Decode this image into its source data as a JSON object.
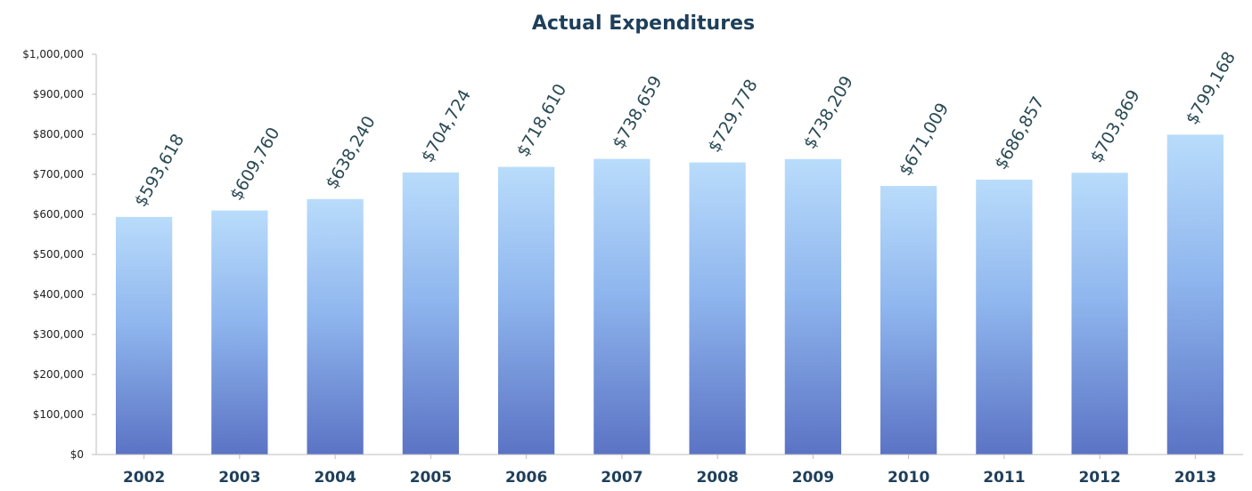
{
  "chart_data": {
    "type": "bar",
    "title": "Actual Expenditures",
    "xlabel": "",
    "ylabel": "",
    "categories": [
      "2002",
      "2003",
      "2004",
      "2005",
      "2006",
      "2007",
      "2008",
      "2009",
      "2010",
      "2011",
      "2012",
      "2013"
    ],
    "values": [
      593618,
      609760,
      638240,
      704724,
      718610,
      738659,
      729778,
      738209,
      671009,
      686857,
      703869,
      799168
    ],
    "data_labels": [
      "$593,618",
      "$609,760",
      "$638,240",
      "$704,724",
      "$718,610",
      "$738,659",
      "$729,778",
      "$738,209",
      "$671,009",
      "$686,857",
      "$703,869",
      "$799,168"
    ],
    "ylim": [
      0,
      1000000
    ],
    "yticks": [
      0,
      100000,
      200000,
      300000,
      400000,
      500000,
      600000,
      700000,
      800000,
      900000,
      1000000
    ],
    "ytick_labels": [
      "$0",
      "$100,000",
      "$200,000",
      "$300,000",
      "$400,000",
      "$500,000",
      "$600,000",
      "$700,000",
      "$800,000",
      "$900,000",
      "$1,000,000"
    ],
    "grid": false,
    "legend": "none",
    "colors": {
      "bar_top": "#b9dcfb",
      "bar_mid": "#8fb6ee",
      "bar_bottom": "#5b73c4",
      "title": "#1e3f5a",
      "xtick": "#1e3f5a",
      "data_label": "#2a4a55",
      "axis": "#bcbcbc"
    }
  }
}
